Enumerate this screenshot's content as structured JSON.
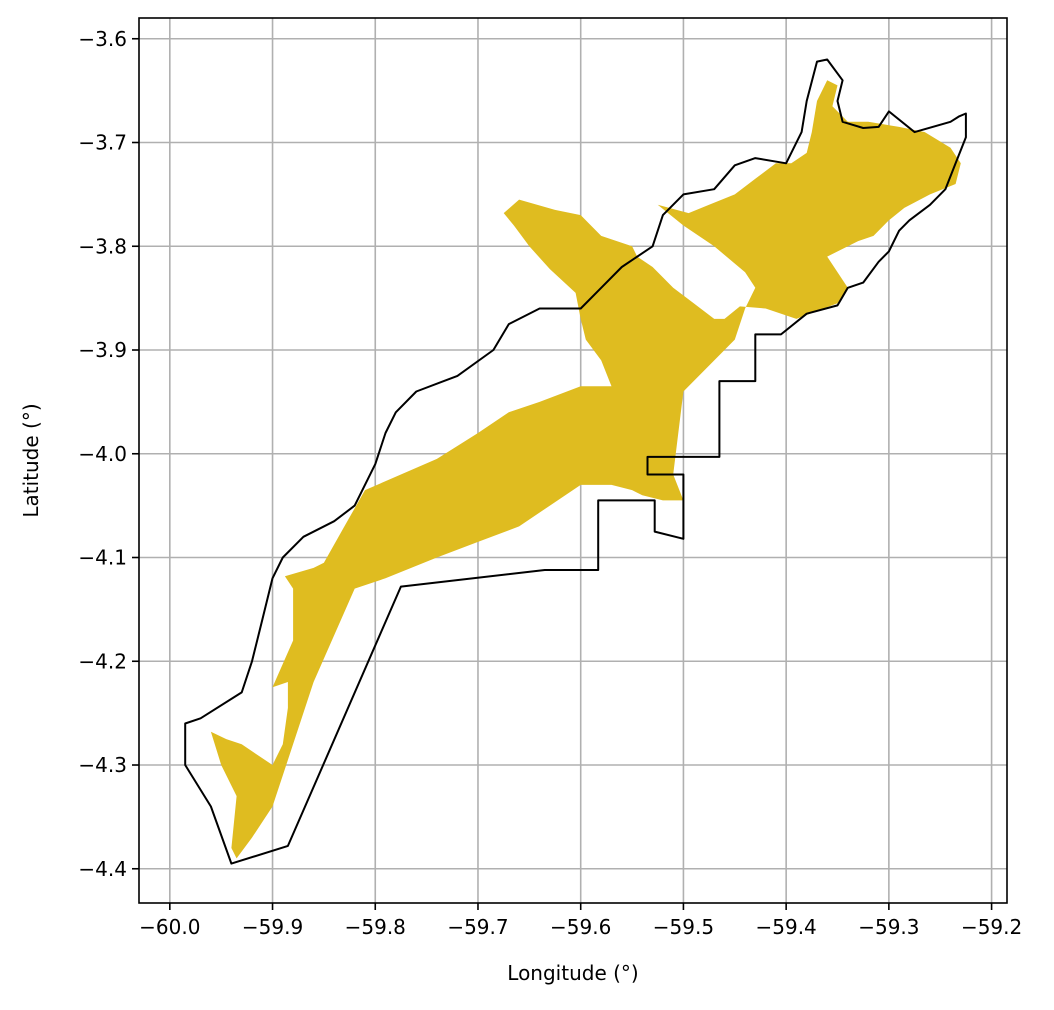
{
  "chart_data": {
    "type": "map",
    "xlabel": "Longitude (°)",
    "ylabel": "Latitude (°)",
    "xlim": [
      -60.03,
      -59.185
    ],
    "ylim": [
      -4.433,
      -3.58
    ],
    "grid": true,
    "xticks": [
      -60.0,
      -59.9,
      -59.8,
      -59.7,
      -59.6,
      -59.5,
      -59.4,
      -59.3,
      -59.2
    ],
    "xtick_labels": [
      "−60.0",
      "−59.9",
      "−59.8",
      "−59.7",
      "−59.6",
      "−59.5",
      "−59.4",
      "−59.3",
      "−59.2"
    ],
    "yticks": [
      -3.6,
      -3.7,
      -3.8,
      -3.9,
      -4.0,
      -4.1,
      -4.2,
      -4.3,
      -4.4
    ],
    "ytick_labels": [
      "−3.6",
      "−3.7",
      "−3.8",
      "−3.9",
      "−4.0",
      "−4.1",
      "−4.2",
      "−4.3",
      "−4.4"
    ],
    "colors": {
      "fill": "#dfbc20",
      "outline": "#000000",
      "grid": "#b0b0b0"
    },
    "layers": [
      {
        "name": "",
        "kind": "filled-area",
        "polygons": [
          [
            [
              -59.96,
              -4.268
            ],
            [
              -59.945,
              -4.275
            ],
            [
              -59.93,
              -4.28
            ],
            [
              -59.9,
              -4.3
            ],
            [
              -59.89,
              -4.28
            ],
            [
              -59.885,
              -4.245
            ],
            [
              -59.885,
              -4.22
            ],
            [
              -59.9,
              -4.225
            ],
            [
              -59.88,
              -4.18
            ],
            [
              -59.88,
              -4.13
            ],
            [
              -59.888,
              -4.118
            ],
            [
              -59.86,
              -4.11
            ],
            [
              -59.85,
              -4.105
            ],
            [
              -59.83,
              -4.07
            ],
            [
              -59.81,
              -4.035
            ],
            [
              -59.74,
              -4.005
            ],
            [
              -59.7,
              -3.98
            ],
            [
              -59.67,
              -3.96
            ],
            [
              -59.64,
              -3.95
            ],
            [
              -59.6,
              -3.935
            ],
            [
              -59.57,
              -3.935
            ],
            [
              -59.58,
              -3.91
            ],
            [
              -59.595,
              -3.89
            ],
            [
              -59.6,
              -3.87
            ],
            [
              -59.605,
              -3.845
            ],
            [
              -59.63,
              -3.822
            ],
            [
              -59.65,
              -3.8
            ],
            [
              -59.665,
              -3.78
            ],
            [
              -59.675,
              -3.768
            ],
            [
              -59.66,
              -3.755
            ],
            [
              -59.625,
              -3.765
            ],
            [
              -59.6,
              -3.77
            ],
            [
              -59.58,
              -3.79
            ],
            [
              -59.55,
              -3.8
            ],
            [
              -59.545,
              -3.81
            ],
            [
              -59.53,
              -3.82
            ],
            [
              -59.51,
              -3.84
            ],
            [
              -59.49,
              -3.855
            ],
            [
              -59.47,
              -3.87
            ],
            [
              -59.46,
              -3.87
            ],
            [
              -59.445,
              -3.858
            ],
            [
              -59.42,
              -3.86
            ],
            [
              -59.39,
              -3.87
            ],
            [
              -59.35,
              -3.855
            ],
            [
              -59.34,
              -3.84
            ],
            [
              -59.36,
              -3.81
            ],
            [
              -59.33,
              -3.795
            ],
            [
              -59.315,
              -3.79
            ],
            [
              -59.3,
              -3.775
            ],
            [
              -59.285,
              -3.763
            ],
            [
              -59.26,
              -3.75
            ],
            [
              -59.235,
              -3.74
            ],
            [
              -59.23,
              -3.72
            ],
            [
              -59.24,
              -3.705
            ],
            [
              -59.265,
              -3.69
            ],
            [
              -59.29,
              -3.685
            ],
            [
              -59.32,
              -3.68
            ],
            [
              -59.34,
              -3.68
            ],
            [
              -59.355,
              -3.665
            ],
            [
              -59.35,
              -3.645
            ],
            [
              -59.36,
              -3.64
            ],
            [
              -59.37,
              -3.66
            ],
            [
              -59.375,
              -3.69
            ],
            [
              -59.38,
              -3.71
            ],
            [
              -59.395,
              -3.72
            ],
            [
              -59.41,
              -3.72
            ],
            [
              -59.43,
              -3.735
            ],
            [
              -59.45,
              -3.75
            ],
            [
              -59.475,
              -3.76
            ],
            [
              -59.495,
              -3.768
            ],
            [
              -59.525,
              -3.76
            ],
            [
              -59.5,
              -3.78
            ],
            [
              -59.47,
              -3.8
            ],
            [
              -59.44,
              -3.825
            ],
            [
              -59.43,
              -3.84
            ],
            [
              -59.44,
              -3.86
            ],
            [
              -59.45,
              -3.89
            ],
            [
              -59.5,
              -3.94
            ],
            [
              -59.51,
              -4.02
            ],
            [
              -59.5,
              -4.045
            ],
            [
              -59.52,
              -4.045
            ],
            [
              -59.54,
              -4.04
            ],
            [
              -59.55,
              -4.035
            ],
            [
              -59.57,
              -4.03
            ],
            [
              -59.6,
              -4.03
            ],
            [
              -59.63,
              -4.05
            ],
            [
              -59.66,
              -4.07
            ],
            [
              -59.7,
              -4.085
            ],
            [
              -59.74,
              -4.1
            ],
            [
              -59.79,
              -4.12
            ],
            [
              -59.82,
              -4.13
            ],
            [
              -59.86,
              -4.22
            ],
            [
              -59.89,
              -4.31
            ],
            [
              -59.9,
              -4.34
            ],
            [
              -59.92,
              -4.37
            ],
            [
              -59.935,
              -4.39
            ],
            [
              -59.94,
              -4.38
            ],
            [
              -59.935,
              -4.33
            ],
            [
              -59.95,
              -4.3
            ],
            [
              -59.96,
              -4.268
            ]
          ]
        ]
      },
      {
        "name": "",
        "kind": "outline",
        "polygons": [
          [
            [
              -59.94,
              -4.395
            ],
            [
              -59.885,
              -4.378
            ],
            [
              -59.775,
              -4.128
            ],
            [
              -59.635,
              -4.112
            ],
            [
              -59.583,
              -4.112
            ],
            [
              -59.583,
              -4.045
            ],
            [
              -59.528,
              -4.045
            ],
            [
              -59.528,
              -4.075
            ],
            [
              -59.5,
              -4.082
            ],
            [
              -59.5,
              -4.02
            ],
            [
              -59.535,
              -4.02
            ],
            [
              -59.535,
              -4.003
            ],
            [
              -59.465,
              -4.003
            ],
            [
              -59.465,
              -3.93
            ],
            [
              -59.43,
              -3.93
            ],
            [
              -59.43,
              -3.885
            ],
            [
              -59.405,
              -3.885
            ],
            [
              -59.38,
              -3.865
            ],
            [
              -59.35,
              -3.857
            ],
            [
              -59.34,
              -3.84
            ],
            [
              -59.325,
              -3.835
            ],
            [
              -59.31,
              -3.815
            ],
            [
              -59.3,
              -3.805
            ],
            [
              -59.29,
              -3.785
            ],
            [
              -59.28,
              -3.775
            ],
            [
              -59.26,
              -3.76
            ],
            [
              -59.245,
              -3.745
            ],
            [
              -59.235,
              -3.72
            ],
            [
              -59.225,
              -3.695
            ],
            [
              -59.225,
              -3.672
            ],
            [
              -59.232,
              -3.675
            ],
            [
              -59.24,
              -3.68
            ],
            [
              -59.275,
              -3.69
            ],
            [
              -59.3,
              -3.67
            ],
            [
              -59.31,
              -3.685
            ],
            [
              -59.325,
              -3.686
            ],
            [
              -59.345,
              -3.68
            ],
            [
              -59.35,
              -3.66
            ],
            [
              -59.345,
              -3.64
            ],
            [
              -59.36,
              -3.62
            ],
            [
              -59.37,
              -3.622
            ],
            [
              -59.38,
              -3.66
            ],
            [
              -59.385,
              -3.69
            ],
            [
              -59.4,
              -3.72
            ],
            [
              -59.43,
              -3.715
            ],
            [
              -59.45,
              -3.722
            ],
            [
              -59.47,
              -3.745
            ],
            [
              -59.5,
              -3.75
            ],
            [
              -59.52,
              -3.77
            ],
            [
              -59.53,
              -3.8
            ],
            [
              -59.56,
              -3.82
            ],
            [
              -59.58,
              -3.84
            ],
            [
              -59.6,
              -3.86
            ],
            [
              -59.64,
              -3.86
            ],
            [
              -59.67,
              -3.875
            ],
            [
              -59.685,
              -3.9
            ],
            [
              -59.72,
              -3.925
            ],
            [
              -59.76,
              -3.94
            ],
            [
              -59.78,
              -3.96
            ],
            [
              -59.79,
              -3.98
            ],
            [
              -59.8,
              -4.01
            ],
            [
              -59.82,
              -4.05
            ],
            [
              -59.84,
              -4.065
            ],
            [
              -59.87,
              -4.08
            ],
            [
              -59.89,
              -4.1
            ],
            [
              -59.9,
              -4.12
            ],
            [
              -59.91,
              -4.16
            ],
            [
              -59.92,
              -4.2
            ],
            [
              -59.93,
              -4.23
            ],
            [
              -59.97,
              -4.255
            ],
            [
              -59.985,
              -4.26
            ],
            [
              -59.985,
              -4.3
            ],
            [
              -59.96,
              -4.34
            ],
            [
              -59.94,
              -4.395
            ]
          ]
        ]
      }
    ]
  }
}
